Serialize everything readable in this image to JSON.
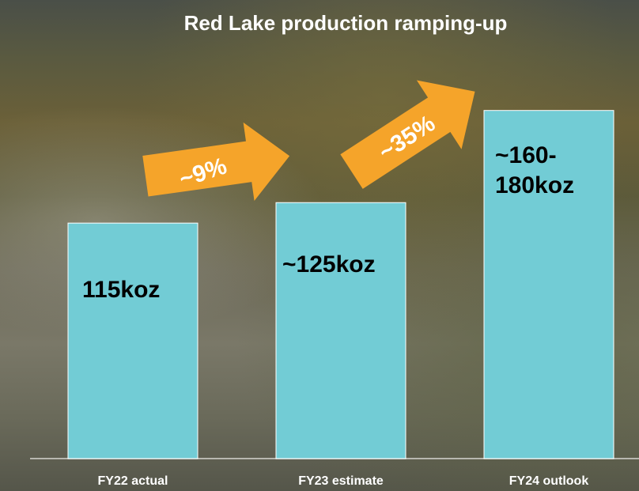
{
  "chart_data": {
    "type": "bar",
    "title": "Red Lake  production ramping-up",
    "categories": [
      "FY22 actual",
      "FY23 estimate",
      "FY24 outlook"
    ],
    "values": [
      115,
      125,
      170
    ],
    "value_labels": [
      "115koz",
      "~125koz",
      "~160-180koz"
    ],
    "color": "#72ccd5",
    "ylim": [
      0,
      200
    ],
    "annotations": [
      "~9%",
      "~35%"
    ]
  }
}
